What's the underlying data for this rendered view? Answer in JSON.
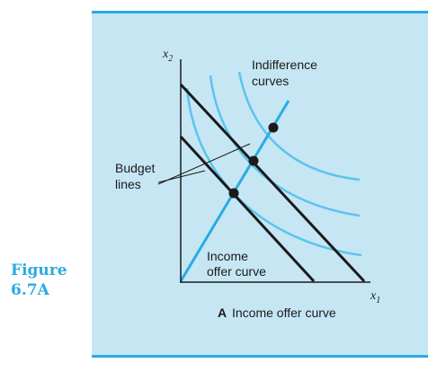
{
  "figure": {
    "label_line1": "Figure",
    "label_line2": "6.7A"
  },
  "diagram": {
    "y_axis": {
      "symbol": "x",
      "subscript": "2"
    },
    "x_axis": {
      "symbol": "x",
      "subscript": "1"
    },
    "indifference_label_line1": "Indifference",
    "indifference_label_line2": "curves",
    "budget_label_line1": "Budget",
    "budget_label_line2": "lines",
    "offer_label_line1": "Income",
    "offer_label_line2": "offer curve",
    "caption_letter": "A",
    "caption_text": "Income offer curve"
  },
  "colors": {
    "panel_background": "#c6e6f4",
    "accent_blue": "#29abe2",
    "curve_blue": "#5bc4ee",
    "ink": "#1a1a1a"
  }
}
